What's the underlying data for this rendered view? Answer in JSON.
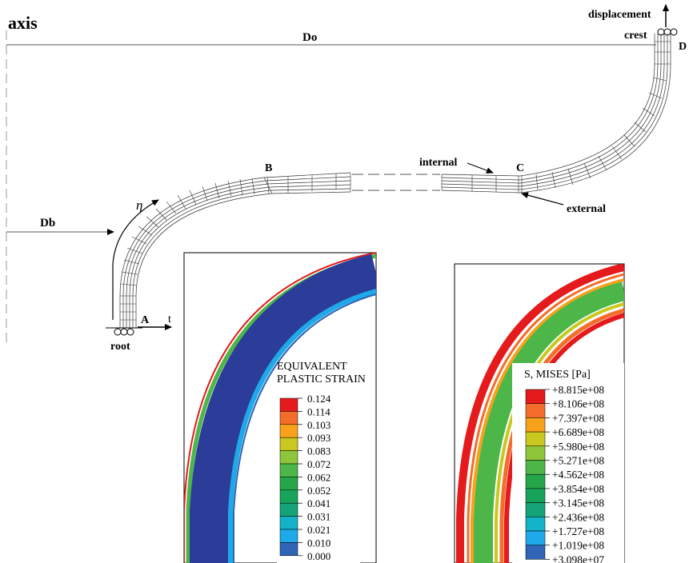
{
  "labels": {
    "axis": "axis",
    "do": "Do",
    "db": "Db",
    "displacement": "displacement",
    "crest": "crest",
    "root": "root",
    "t": "t",
    "eta": "η",
    "point_a": "A",
    "point_b": "B",
    "point_c": "C",
    "point_d": "D",
    "internal": "internal",
    "external": "external"
  },
  "legend_strain": {
    "title_line1": "EQUIVALENT",
    "title_line2": "PLASTIC STRAIN",
    "values": [
      "0.124",
      "0.114",
      "0.103",
      "0.093",
      "0.083",
      "0.072",
      "0.062",
      "0.052",
      "0.041",
      "0.031",
      "0.021",
      "0.010",
      "0.000"
    ]
  },
  "legend_mises": {
    "title": "S, MISES [Pa]",
    "values": [
      "+8.815e+08",
      "+8.106e+08",
      "+7.397e+08",
      "+6.689e+08",
      "+5.980e+08",
      "+5.271e+08",
      "+4.562e+08",
      "+3.854e+08",
      "+3.145e+08",
      "+2.436e+08",
      "+1.727e+08",
      "+1.019e+08",
      "+3.098e+07"
    ]
  },
  "colors": {
    "scale": [
      "#e41a1c",
      "#f46d2b",
      "#f7a21a",
      "#c8c81e",
      "#8fc53a",
      "#4cb648",
      "#26a64a",
      "#17a45a",
      "#14a378",
      "#12b3c8",
      "#1ea9e8",
      "#2f64b6",
      "#2c3d99"
    ]
  }
}
